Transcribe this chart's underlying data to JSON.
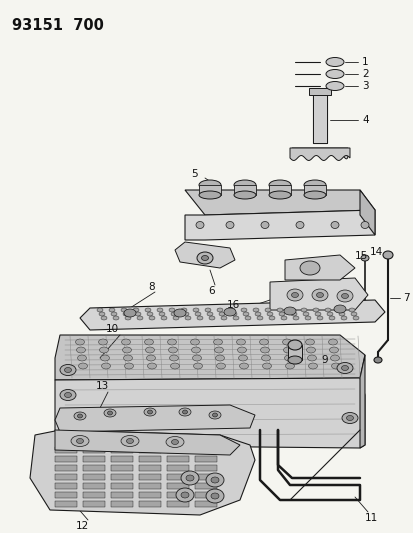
{
  "title": "93151  700",
  "bg": "#f5f5f0",
  "lc": "#1a1a1a",
  "lc2": "#444444",
  "fig_width": 4.14,
  "fig_height": 5.33,
  "dpi": 100
}
